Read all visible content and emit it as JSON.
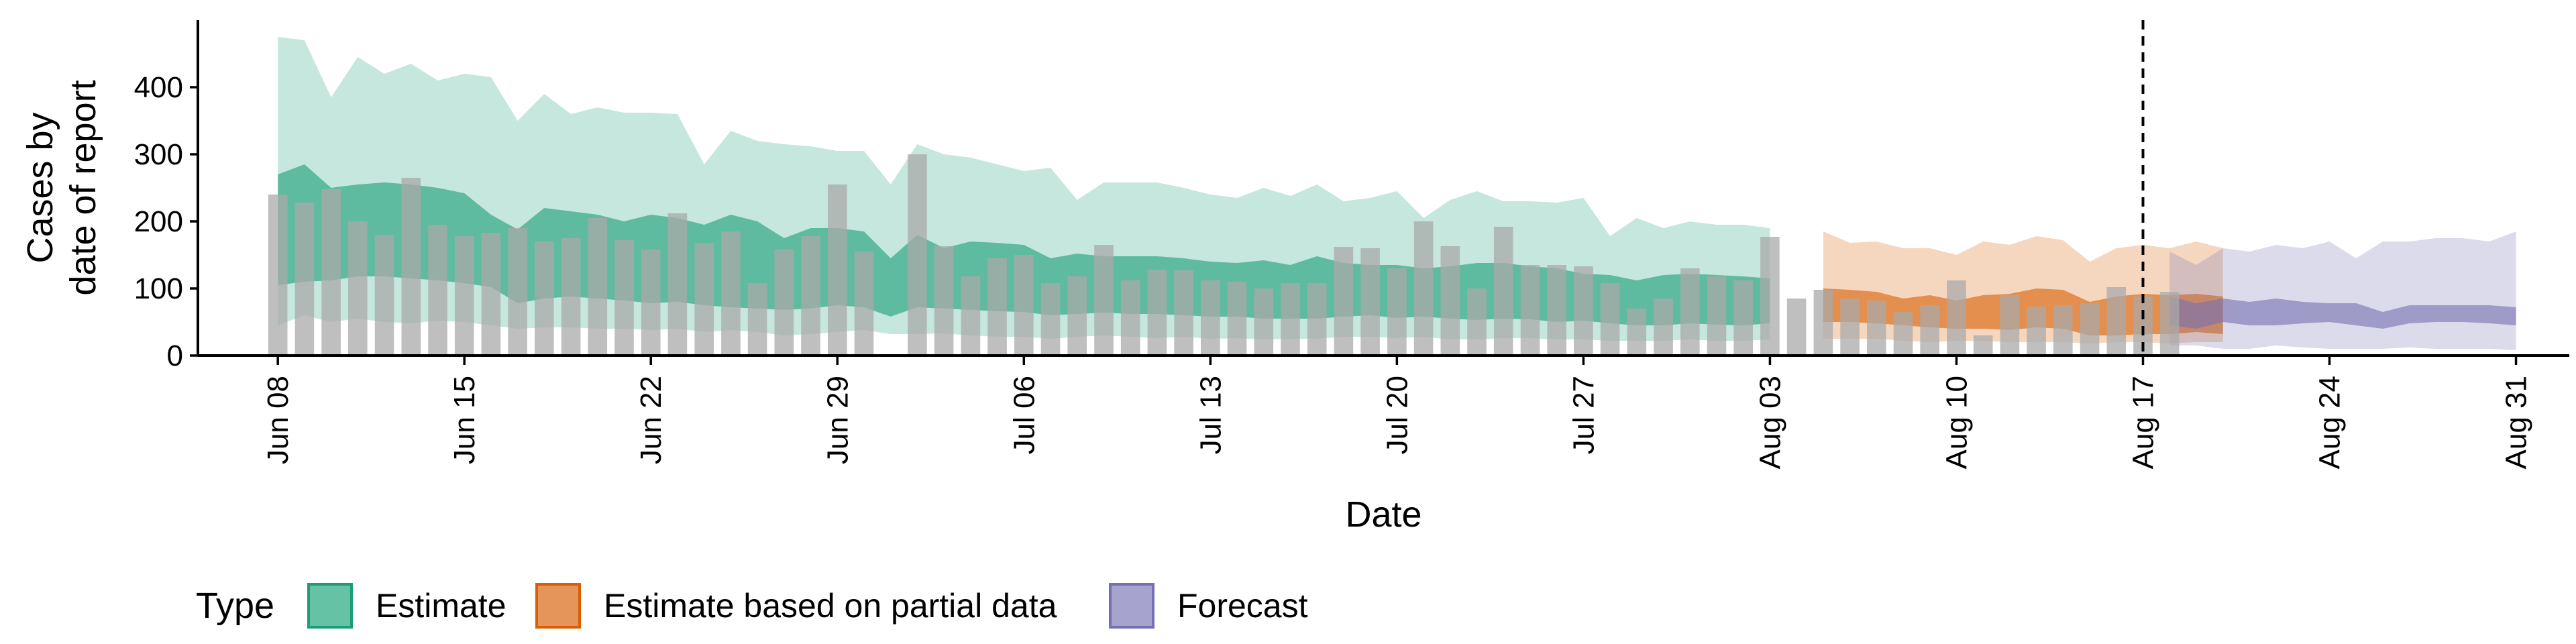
{
  "chart_data": {
    "type": "area",
    "xlabel": "Date",
    "ylabel_lines": [
      "Cases by",
      "date of report"
    ],
    "ylim": [
      0,
      500
    ],
    "xlim": [
      "2020-06-05",
      "2020-09-02"
    ],
    "yticks": [
      0,
      100,
      200,
      300,
      400
    ],
    "xticks": [
      {
        "date": "2020-06-08",
        "label": "Jun 08"
      },
      {
        "date": "2020-06-15",
        "label": "Jun 15"
      },
      {
        "date": "2020-06-22",
        "label": "Jun 22"
      },
      {
        "date": "2020-06-29",
        "label": "Jun 29"
      },
      {
        "date": "2020-07-06",
        "label": "Jul 06"
      },
      {
        "date": "2020-07-13",
        "label": "Jul 13"
      },
      {
        "date": "2020-07-20",
        "label": "Jul 20"
      },
      {
        "date": "2020-07-27",
        "label": "Jul 27"
      },
      {
        "date": "2020-08-03",
        "label": "Aug 03"
      },
      {
        "date": "2020-08-10",
        "label": "Aug 10"
      },
      {
        "date": "2020-08-17",
        "label": "Aug 17"
      },
      {
        "date": "2020-08-24",
        "label": "Aug 24"
      },
      {
        "date": "2020-08-31",
        "label": "Aug 31"
      }
    ],
    "vline_date": "2020-08-17",
    "grid": false,
    "legend": {
      "title": "Type",
      "position": "bottom-left",
      "entries": [
        {
          "label": "Estimate",
          "fill": "#66c2a5",
          "stroke": "#1b9e77"
        },
        {
          "label": "Estimate based on partial data",
          "fill": "#e6955a",
          "stroke": "#d95f02"
        },
        {
          "label": "Forecast",
          "fill": "#a6a3cf",
          "stroke": "#7570b3"
        }
      ]
    },
    "bar_color": "#a9a9a9",
    "observed_start": "2020-06-08",
    "observed_cases": [
      240,
      228,
      248,
      200,
      180,
      265,
      195,
      178,
      183,
      190,
      170,
      175,
      205,
      172,
      158,
      212,
      168,
      185,
      108,
      158,
      178,
      255,
      155,
      0,
      300,
      163,
      118,
      145,
      150,
      108,
      118,
      165,
      112,
      128,
      127,
      112,
      110,
      100,
      108,
      108,
      162,
      160,
      130,
      200,
      163,
      100,
      192,
      135,
      135,
      133,
      108,
      70,
      85,
      130,
      118,
      112,
      177,
      85,
      98,
      85,
      82,
      65,
      75,
      112,
      30,
      90,
      73,
      75,
      78,
      102,
      88,
      95
    ],
    "series": [
      {
        "type": "Estimate",
        "start": "2020-06-08",
        "fill": "#1b9e77",
        "lower90": [
          45,
          60,
          50,
          55,
          50,
          48,
          52,
          50,
          45,
          40,
          42,
          42,
          40,
          40,
          38,
          40,
          35,
          38,
          35,
          30,
          32,
          35,
          38,
          32,
          32,
          33,
          30,
          28,
          28,
          25,
          28,
          30,
          28,
          26,
          28,
          25,
          26,
          24,
          25,
          25,
          28,
          28,
          26,
          28,
          24,
          24,
          26,
          26,
          24,
          24,
          22,
          22,
          22,
          24,
          22,
          22,
          24
        ],
        "upper90": [
          475,
          470,
          385,
          445,
          420,
          435,
          410,
          420,
          415,
          350,
          390,
          360,
          370,
          362,
          362,
          360,
          285,
          335,
          320,
          315,
          312,
          305,
          305,
          255,
          315,
          300,
          295,
          285,
          275,
          280,
          232,
          258,
          258,
          258,
          250,
          240,
          235,
          250,
          238,
          255,
          230,
          235,
          245,
          205,
          232,
          245,
          230,
          230,
          228,
          235,
          178,
          205,
          190,
          200,
          195,
          195,
          190
        ],
        "lower50": [
          105,
          110,
          112,
          118,
          118,
          115,
          112,
          108,
          102,
          78,
          85,
          88,
          85,
          82,
          78,
          80,
          75,
          72,
          70,
          68,
          70,
          75,
          72,
          58,
          72,
          70,
          68,
          66,
          65,
          60,
          62,
          64,
          62,
          62,
          60,
          58,
          58,
          55,
          55,
          55,
          58,
          60,
          56,
          58,
          55,
          53,
          55,
          54,
          50,
          52,
          48,
          45,
          45,
          48,
          46,
          45,
          48
        ],
        "upper50": [
          270,
          285,
          250,
          255,
          258,
          255,
          250,
          242,
          210,
          188,
          220,
          215,
          210,
          200,
          210,
          205,
          195,
          210,
          200,
          175,
          190,
          190,
          185,
          145,
          180,
          160,
          170,
          168,
          165,
          145,
          152,
          148,
          148,
          148,
          145,
          140,
          138,
          142,
          135,
          148,
          138,
          135,
          135,
          130,
          133,
          138,
          138,
          133,
          130,
          122,
          120,
          112,
          120,
          122,
          120,
          118,
          115
        ]
      },
      {
        "type": "Estimate based on partial data",
        "start": "2020-08-05",
        "fill": "#d95f02",
        "lower90": [
          25,
          25,
          25,
          22,
          20,
          22,
          22,
          20,
          20,
          20,
          18,
          20,
          20,
          18,
          20,
          20
        ],
        "upper90": [
          185,
          168,
          170,
          160,
          160,
          150,
          170,
          165,
          178,
          172,
          140,
          160,
          165,
          160,
          170,
          160
        ],
        "lower50": [
          50,
          50,
          48,
          45,
          42,
          40,
          40,
          38,
          42,
          40,
          30,
          30,
          32,
          32,
          35,
          32
        ],
        "upper50": [
          100,
          98,
          95,
          85,
          90,
          82,
          90,
          92,
          100,
          98,
          80,
          88,
          92,
          90,
          92,
          88
        ]
      },
      {
        "type": "Forecast",
        "start": "2020-08-18",
        "fill": "#7570b3",
        "lower90": [
          15,
          15,
          10,
          10,
          15,
          12,
          10,
          10,
          10,
          12,
          10,
          10,
          10,
          8
        ],
        "upper90": [
          155,
          135,
          160,
          155,
          165,
          160,
          170,
          145,
          170,
          170,
          175,
          175,
          170,
          185
        ],
        "lower50": [
          45,
          40,
          50,
          45,
          45,
          48,
          50,
          45,
          40,
          48,
          50,
          50,
          48,
          45
        ],
        "upper50": [
          88,
          78,
          85,
          80,
          85,
          80,
          78,
          78,
          65,
          75,
          75,
          75,
          75,
          72
        ]
      }
    ]
  }
}
